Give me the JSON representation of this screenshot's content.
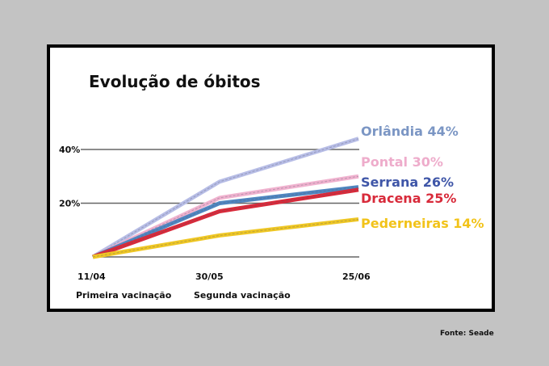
{
  "chart_data": {
    "type": "line",
    "title": "Evolução de óbitos",
    "categories": [
      "11/04",
      "30/05",
      "25/06"
    ],
    "category_notes": [
      "Primeira vacinação",
      "Segunda vacinação",
      ""
    ],
    "ylim": [
      0,
      40
    ],
    "yticks": [
      "20%",
      "40%"
    ],
    "ytick_values": [
      20,
      40
    ],
    "grid": true,
    "series": [
      {
        "name": "Orlândia",
        "label": "Orlândia 44%",
        "values": [
          0,
          28,
          44
        ],
        "color": "#7b96c4",
        "line_color": "#b7bde6"
      },
      {
        "name": "Pontal",
        "label": "Pontal 30%",
        "values": [
          0,
          22,
          30
        ],
        "color": "#eeaccb",
        "line_color": "#f0b2cf"
      },
      {
        "name": "Serrana",
        "label": "Serrana 26%",
        "values": [
          0,
          20,
          26
        ],
        "color": "#3f56a8",
        "line_color": "#4f86c0"
      },
      {
        "name": "Dracena",
        "label": "Dracena 25%",
        "values": [
          0,
          17,
          25
        ],
        "color": "#d82a3a",
        "line_color": "#d82a3a"
      },
      {
        "name": "Pederneiras",
        "label": "Pederneiras 14%",
        "values": [
          0,
          8,
          14
        ],
        "color": "#f2c31a",
        "line_color": "#efc724"
      }
    ],
    "source": "Fonte: Seade"
  }
}
